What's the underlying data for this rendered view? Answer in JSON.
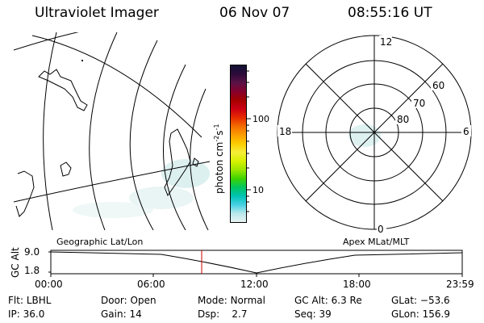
{
  "header": {
    "title": "Ultraviolet Imager",
    "date": "06 Nov 07",
    "time": "08:55:16 UT"
  },
  "colorbar": {
    "label": "photon cm",
    "label_exp1": "-2",
    "label_s": "s",
    "label_exp2": "-1",
    "tick_100": "100",
    "tick_10": "10",
    "scale": "log",
    "colors": [
      "#111133",
      "#2d0b3a",
      "#5a1246",
      "#85002b",
      "#a50000",
      "#cc0014",
      "#e72a00",
      "#f36c00",
      "#fb9d00",
      "#fccd00",
      "#f6ef3a",
      "#d8f000",
      "#9ae600",
      "#3fd300",
      "#00c65f",
      "#00c2b2",
      "#44d0e3",
      "#b8e8ea",
      "#e8f3f3"
    ]
  },
  "polar_plot": {
    "mlt_labels": {
      "top": "12",
      "right": "6",
      "bottom": "0",
      "left": "18"
    },
    "lat_labels": [
      "60",
      "70",
      "80"
    ],
    "caption": "Apex MLat/MLT"
  },
  "geo_map": {
    "caption": "Geographic Lat/Lon"
  },
  "timeline": {
    "ylabel": "GC Alt",
    "ticks_y": [
      "9.0",
      "1.8"
    ],
    "ticks_x": [
      "00:00",
      "06:00",
      "12:00",
      "18:00",
      "23:59"
    ],
    "marker_color": "#cc0000"
  },
  "info": {
    "flt_label": "Flt:",
    "flt_value": "LBHL",
    "ip_label": "IP:",
    "ip_value": "36.0",
    "door_label": "Door:",
    "door_value": "Open",
    "gain_label": "Gain:",
    "gain_value": "14",
    "mode_label": "Mode:",
    "mode_value": "Normal",
    "dsp_label": "Dsp:",
    "dsp_value": "2.7",
    "gcalt_label": "GC Alt:",
    "gcalt_value": "6.3 Re",
    "seq_label": "Seq:",
    "seq_value": "39",
    "glat_label": "GLat:",
    "glat_value": "−53.6",
    "glon_label": "GLon:",
    "glon_value": "156.9"
  }
}
